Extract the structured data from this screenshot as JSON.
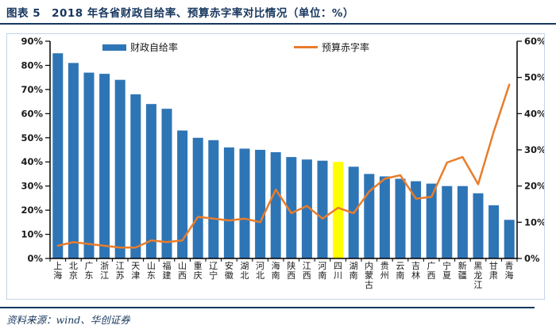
{
  "header": {
    "title": "图表 5　2018 年各省财政自给率、预算赤字率对比情况（单位：%）"
  },
  "footer": {
    "source": "资料来源：wind、华创证券"
  },
  "colors": {
    "navy": "#17375E",
    "bar_blue": "#2E75B6",
    "line_orange": "#E87D2B",
    "highlight_yellow": "#FFFF00",
    "axis_black": "#000000",
    "box_border": "#c3d5e8"
  },
  "chart_data": {
    "type": "bar",
    "subtype": "bar+line dual-axis",
    "grid": "off",
    "legend_position": "top-center",
    "categories": [
      "上海",
      "北京",
      "广东",
      "浙江",
      "江苏",
      "天津",
      "山东",
      "福建",
      "山西",
      "重庆",
      "辽宁",
      "安徽",
      "湖北",
      "河北",
      "海南",
      "陕西",
      "江西",
      "河南",
      "四川",
      "湖南",
      "内蒙古",
      "贵州",
      "云南",
      "吉林",
      "广西",
      "宁夏",
      "新疆",
      "黑龙江",
      "甘肃",
      "青海"
    ],
    "series": [
      {
        "name": "财政自给率",
        "type": "bar",
        "axis": "left",
        "color": "#2E75B6",
        "values": [
          85,
          81,
          77,
          76.5,
          74,
          68,
          64,
          62,
          53,
          50,
          49,
          46,
          45.5,
          45,
          44,
          42,
          41,
          40.5,
          40,
          38,
          35,
          34,
          33,
          32,
          31,
          30,
          30,
          27,
          22,
          16
        ]
      },
      {
        "name": "预算赤字率",
        "type": "line",
        "axis": "right",
        "color": "#E87D2B",
        "values": [
          3.5,
          4.5,
          4,
          3.5,
          3,
          3,
          5,
          4.5,
          5,
          11.5,
          11,
          10.5,
          11,
          10,
          19,
          12.5,
          14.5,
          11,
          14,
          12.5,
          18.5,
          22,
          23,
          16.5,
          17,
          26.5,
          28,
          20.5,
          35,
          48
        ]
      }
    ],
    "highlight_category": "四川",
    "highlight_index": 18,
    "highlight_color": "#FFFF00",
    "left_axis": {
      "min": 0,
      "max": 90,
      "ticks": [
        "0%",
        "10%",
        "20%",
        "30%",
        "40%",
        "50%",
        "60%",
        "70%",
        "80%",
        "90%"
      ]
    },
    "right_axis": {
      "min": 0,
      "max": 60,
      "ticks": [
        "0%",
        "10%",
        "20%",
        "30%",
        "40%",
        "50%",
        "60%"
      ]
    }
  }
}
